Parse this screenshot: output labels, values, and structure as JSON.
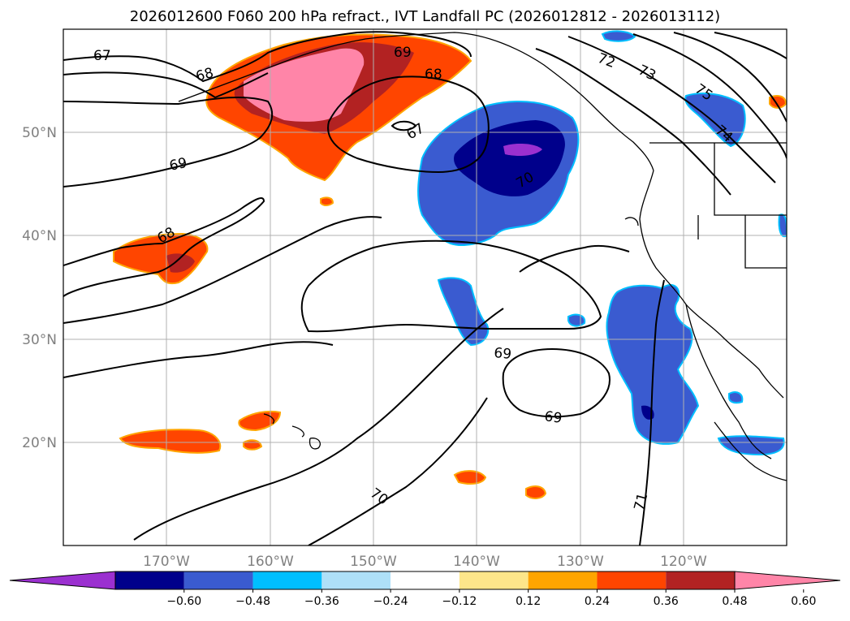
{
  "title": "2026012600 F060 200 hPa refract., IVT Landfall PC (2026012812 - 2026013112)",
  "lat_labels": [
    "50°N",
    "40°N",
    "30°N",
    "20°N"
  ],
  "lon_labels": [
    "170°W",
    "160°W",
    "150°W",
    "140°W",
    "130°W",
    "120°W"
  ],
  "contour_labels": [
    "67",
    "68",
    "69",
    "69",
    "68",
    "67",
    "69",
    "68",
    "70",
    "72",
    "73",
    "75",
    "74",
    "69",
    "70",
    "71"
  ],
  "colorbar": {
    "ticks": [
      "−0.60",
      "−0.48",
      "−0.36",
      "−0.24",
      "−0.12",
      "0.12",
      "0.24",
      "0.36",
      "0.48",
      "0.60"
    ],
    "colors": [
      "#9b30d0",
      "#00008b",
      "#3a5bd0",
      "#00bfff",
      "#aee0f8",
      "#ffffff",
      "#fde68a",
      "#ffa500",
      "#ff4500",
      "#b22222",
      "#ff85a8"
    ]
  }
}
